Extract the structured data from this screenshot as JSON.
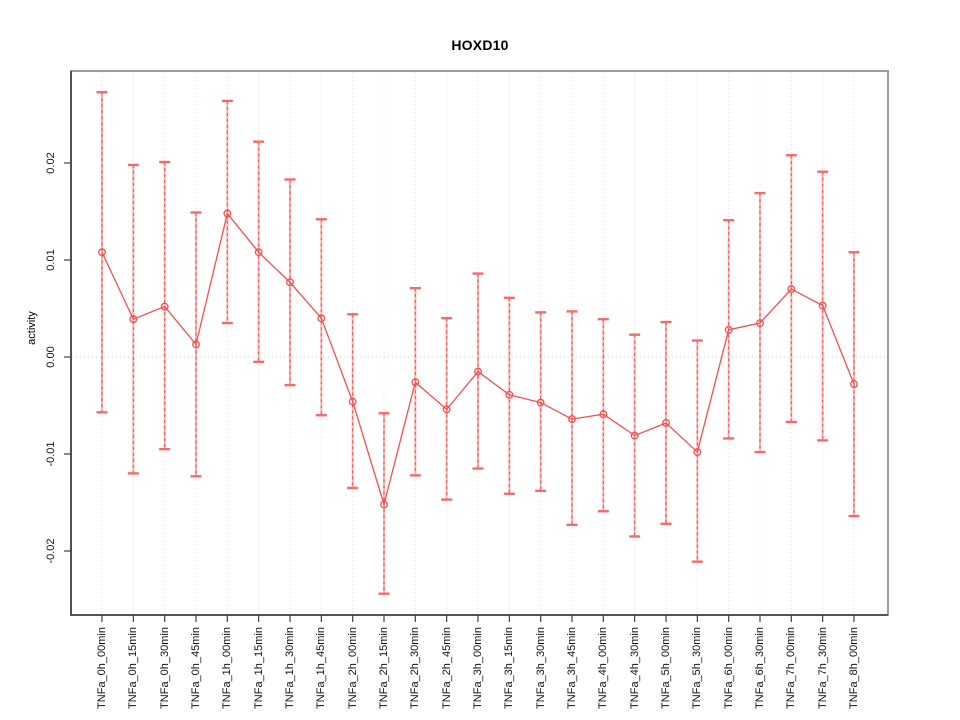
{
  "chart_data": {
    "type": "line",
    "title": "HOXD10",
    "xlabel": "",
    "ylabel": "activity",
    "legend": "none",
    "grid": "dotted vertical gridline at every category; dotted horizontal gridline at y=0 only",
    "marker": "open-circle",
    "error_bars": true,
    "categories": [
      "TNFa_0h_00min",
      "TNFa_0h_15min",
      "TNFa_0h_30min",
      "TNFa_0h_45min",
      "TNFa_1h_00min",
      "TNFa_1h_15min",
      "TNFa_1h_30min",
      "TNFa_1h_45min",
      "TNFa_2h_00min",
      "TNFa_2h_15min",
      "TNFa_2h_30min",
      "TNFa_2h_45min",
      "TNFa_3h_00min",
      "TNFa_3h_15min",
      "TNFa_3h_30min",
      "TNFa_3h_45min",
      "TNFa_4h_00min",
      "TNFa_4h_30min",
      "TNFa_5h_00min",
      "TNFa_5h_30min",
      "TNFa_6h_00min",
      "TNFa_6h_30min",
      "TNFa_7h_00min",
      "TNFa_7h_30min",
      "TNFa_8h_00min"
    ],
    "series": [
      {
        "name": "activity",
        "values": [
          0.0108,
          0.0039,
          0.0052,
          0.0013,
          0.0148,
          0.0108,
          0.0077,
          0.004,
          -0.0046,
          -0.0152,
          -0.0026,
          -0.0054,
          -0.0015,
          -0.0039,
          -0.0047,
          -0.0064,
          -0.0059,
          -0.0081,
          -0.0068,
          -0.0098,
          0.0028,
          0.0035,
          0.007,
          0.0053,
          -0.0028
        ],
        "lower": [
          -0.0057,
          -0.012,
          -0.0095,
          -0.0123,
          0.0035,
          -0.0005,
          -0.0029,
          -0.006,
          -0.0135,
          -0.0244,
          -0.0122,
          -0.0147,
          -0.0115,
          -0.0141,
          -0.0138,
          -0.0173,
          -0.0159,
          -0.0185,
          -0.0172,
          -0.0211,
          -0.0084,
          -0.0098,
          -0.0067,
          -0.0086,
          -0.0164
        ],
        "upper": [
          0.0273,
          0.0198,
          0.0201,
          0.0149,
          0.0264,
          0.0222,
          0.0183,
          0.0142,
          0.0044,
          -0.0058,
          0.0071,
          0.004,
          0.0086,
          0.0061,
          0.0046,
          0.0047,
          0.0039,
          0.0023,
          0.0036,
          0.0017,
          0.0141,
          0.0169,
          0.0208,
          0.0191,
          0.0108
        ]
      }
    ],
    "ytick_labels": [
      "0.02",
      "0.01",
      "0.00",
      "-0.01",
      "-0.02"
    ],
    "ytick_values": [
      0.02,
      0.01,
      0.0,
      -0.01,
      -0.02
    ],
    "ylim": [
      -0.0266,
      0.0295
    ],
    "colors": {
      "line": "#f25050",
      "marker": "#f25050",
      "bar": "#ffb0b0",
      "bar_dash": "#e85050",
      "cap": "#f66a6a",
      "grid": "#dedede",
      "grid_zero": "#cfcfcf",
      "box": "#9c9c9c",
      "axis": "#3f3f3f",
      "text": "#111111"
    }
  }
}
